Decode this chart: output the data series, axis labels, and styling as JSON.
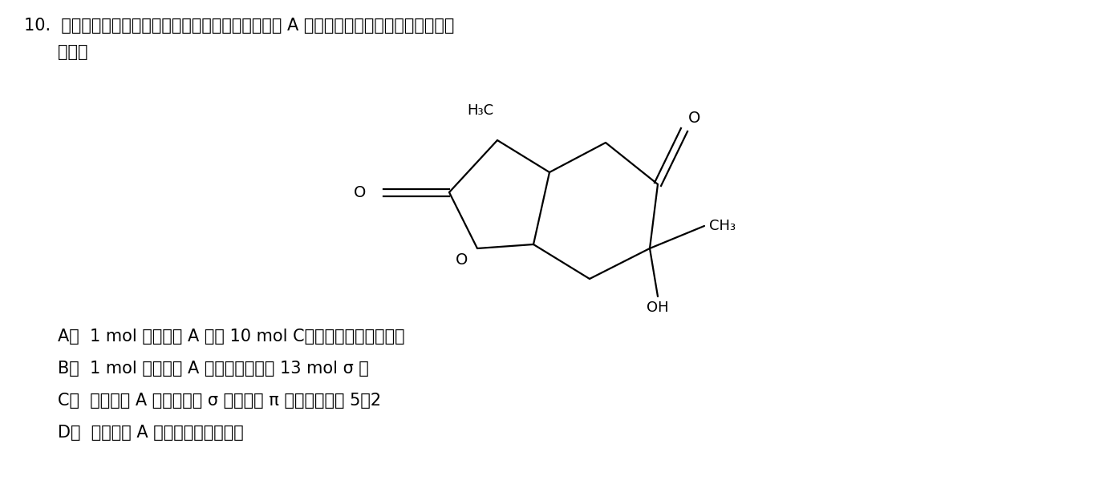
{
  "title_line1": "10.  芍药是我国著名的中药材之一，其含有的芍药内苷 A 的结构如图所示，下列有关说法正",
  "title_line2": "确的是",
  "options": [
    "A．  1 mol 芍药内苷 A 含有 10 mol C，且均形成极性共价键",
    "B．  1 mol 芍药内苷 A 中氢原子共形成 13 mol σ 键",
    "C．  芍药内苷 A 分子中碘氧 σ 键与碘氧 π 键数目之比为 5：2",
    "D．  芍药内苷 A 分子属于非极性分子"
  ],
  "bg_color": "#ffffff",
  "text_color": "#000000",
  "font_size_title": 15,
  "font_size_options": 15
}
